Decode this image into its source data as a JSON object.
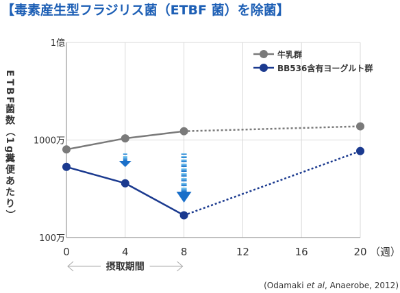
{
  "chart_data": {
    "type": "line",
    "title": "【毒素産生型フラジリス菌（ETBF 菌）を除菌】",
    "ylabel": "ETBF菌数（1g糞便あたり）",
    "xlabel": "",
    "x_unit_label": "（週）",
    "x": [
      0,
      4,
      8,
      20
    ],
    "x_ticks": [
      "0",
      "4",
      "8",
      "12",
      "16",
      "20"
    ],
    "x_tick_values": [
      0,
      4,
      8,
      12,
      16,
      20
    ],
    "y_ticks": [
      "1億",
      "1000万",
      "100万"
    ],
    "y_tick_values": [
      100000000,
      10000000,
      1000000
    ],
    "y_scale": "log",
    "ylim": [
      1000000,
      100000000
    ],
    "xlim": [
      0,
      20
    ],
    "grid": true,
    "legend_position": "top-right",
    "series": [
      {
        "name": "牛乳群",
        "color": "#7a7a7a",
        "values": [
          8000000,
          10400000,
          12300000,
          13800000
        ],
        "dashed_from_index": 2
      },
      {
        "name": "BB536含有ヨーグルト群",
        "color": "#1b3a8f",
        "values": [
          5300000,
          3600000,
          1690000,
          7700000
        ],
        "dashed_from_index": 2
      }
    ],
    "intake_period_label": "摂取期間",
    "intake_period": [
      0,
      8
    ],
    "arrows": [
      {
        "x": 4,
        "color": "#1a8ad4"
      },
      {
        "x": 8,
        "color": "#1a8ad4"
      }
    ],
    "source": "(Odamaki et al, Anaerobe, 2012)"
  }
}
